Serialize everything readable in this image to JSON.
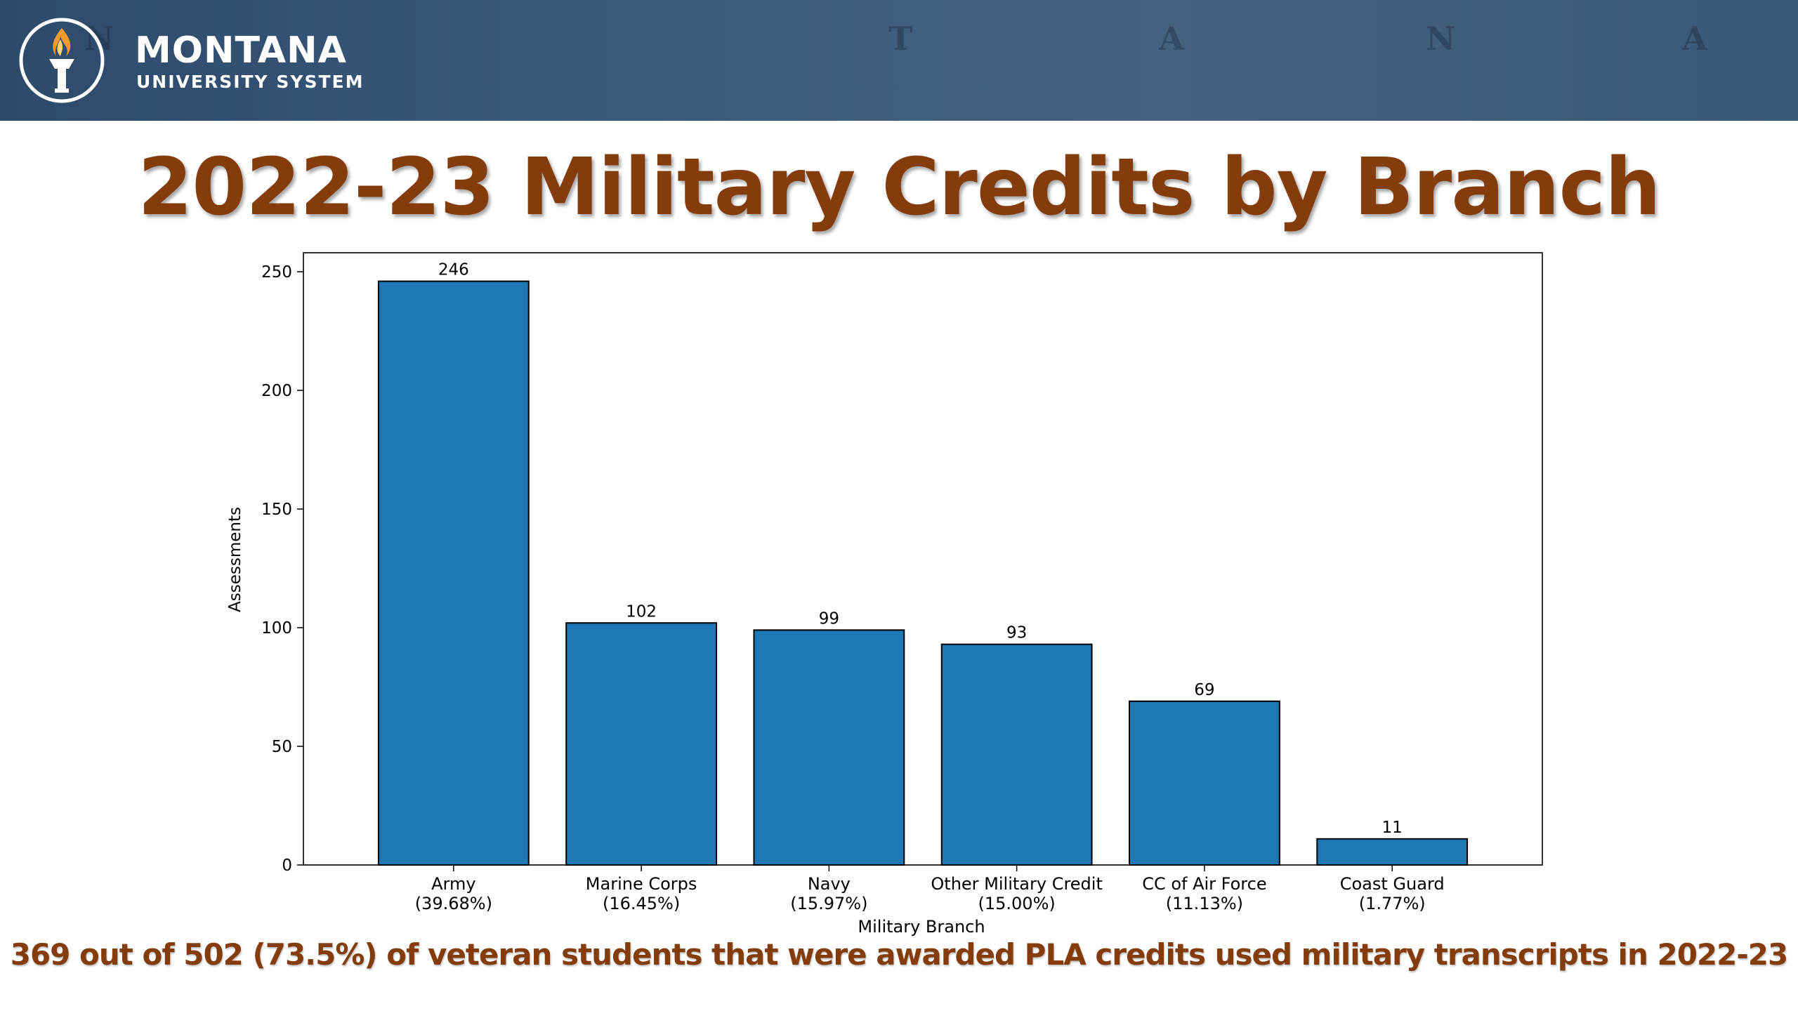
{
  "header": {
    "brand_name": "MONTANA",
    "brand_sub": "UNIVERSITY SYSTEM",
    "background_color": "#3c5a7c",
    "map_letters": [
      "N",
      "T",
      "A",
      "N",
      "A"
    ]
  },
  "title": "2022-23 Military Credits by Branch",
  "footer": "369 out of 502 (73.5%) of veteran students that were awarded PLA credits used military transcripts in 2022-23",
  "chart_data": {
    "type": "bar",
    "categories": [
      "Army\n(39.68%)",
      "Marine Corps\n(16.45%)",
      "Navy\n(15.97%)",
      "Other Military Credit\n(15.00%)",
      "CC of Air Force\n(11.13%)",
      "Coast Guard\n(1.77%)"
    ],
    "values": [
      246,
      102,
      99,
      93,
      69,
      11
    ],
    "data_labels": [
      "246",
      "102",
      "99",
      "93",
      "69",
      "11"
    ],
    "xlabel": "Military Branch",
    "ylabel": "Assessments",
    "ylim": [
      0,
      258
    ],
    "yticks": [
      0,
      50,
      100,
      150,
      200,
      250
    ],
    "bar_color": "#1f77b4",
    "grid": false,
    "legend": "none"
  },
  "colors": {
    "title": "#843c0c",
    "bar": "#1f77b4"
  }
}
